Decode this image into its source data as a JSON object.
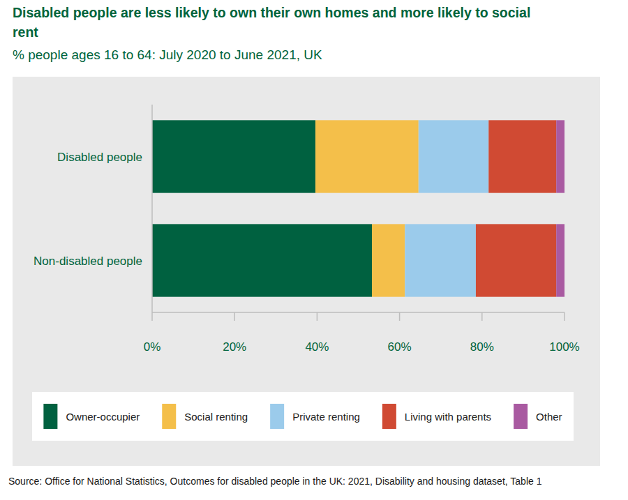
{
  "chart_data": {
    "type": "bar",
    "orientation": "horizontal",
    "stacked": true,
    "title": "Disabled people are less likely to own their own homes and more likely to social rent",
    "subtitle": "% people ages 16 to 64: July 2020 to June 2021, UK",
    "source": "Source: Office for National Statistics, Outcomes for disabled people in the UK: 2021, Disability and housing dataset, Table 1",
    "categories": [
      "Disabled people",
      "Non-disabled people"
    ],
    "series": [
      {
        "name": "Owner-occupier",
        "color": "#006140",
        "values": [
          39.6,
          53.3
        ]
      },
      {
        "name": "Social renting",
        "color": "#f4bf4a",
        "values": [
          25.0,
          8.0
        ]
      },
      {
        "name": "Private renting",
        "color": "#9bcbeb",
        "values": [
          17.0,
          17.2
        ]
      },
      {
        "name": "Living with parents",
        "color": "#d04a33",
        "values": [
          16.4,
          19.5
        ]
      },
      {
        "name": "Other",
        "color": "#a95aa1",
        "values": [
          2.0,
          2.0
        ]
      }
    ],
    "xlim": [
      0,
      100
    ],
    "xticks": [
      {
        "value": 0,
        "label": "0%"
      },
      {
        "value": 20,
        "label": "20%"
      },
      {
        "value": 40,
        "label": "40%"
      },
      {
        "value": 60,
        "label": "60%"
      },
      {
        "value": 80,
        "label": "80%"
      },
      {
        "value": 100,
        "label": "100%"
      }
    ],
    "legend": "bottom",
    "grid": false
  }
}
